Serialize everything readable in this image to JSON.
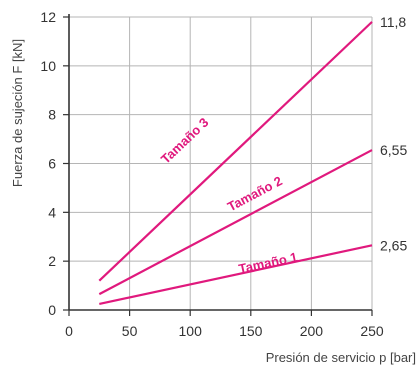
{
  "chart_data": {
    "type": "line",
    "title": "",
    "xlabel": "Presión de servicio p [bar]",
    "ylabel": "Fuerza de sujeción F [kN]",
    "xlim": [
      0,
      250
    ],
    "ylim": [
      0,
      12
    ],
    "xticks": [
      0,
      50,
      100,
      150,
      200,
      250
    ],
    "yticks": [
      0,
      2,
      4,
      6,
      8,
      10,
      12
    ],
    "x_tick_labels": [
      "0",
      "50",
      "100",
      "150",
      "200",
      "250"
    ],
    "y_tick_labels": [
      "0",
      "2",
      "4",
      "6",
      "8",
      "10",
      "12"
    ],
    "grid": true,
    "line_color": "#e0197d",
    "series": [
      {
        "name": "Tamaño 1",
        "x": [
          25,
          250
        ],
        "y": [
          0.25,
          2.65
        ],
        "end_label": "2,65",
        "label_at": [
          165,
          1.75
        ]
      },
      {
        "name": "Tamaño 2",
        "x": [
          25,
          250
        ],
        "y": [
          0.65,
          6.55
        ],
        "end_label": "6,55",
        "label_at": [
          155,
          4.6
        ]
      },
      {
        "name": "Tamaño 3",
        "x": [
          25,
          250
        ],
        "y": [
          1.2,
          11.8
        ],
        "end_label": "11,8",
        "label_at": [
          98,
          6.8
        ]
      }
    ]
  }
}
